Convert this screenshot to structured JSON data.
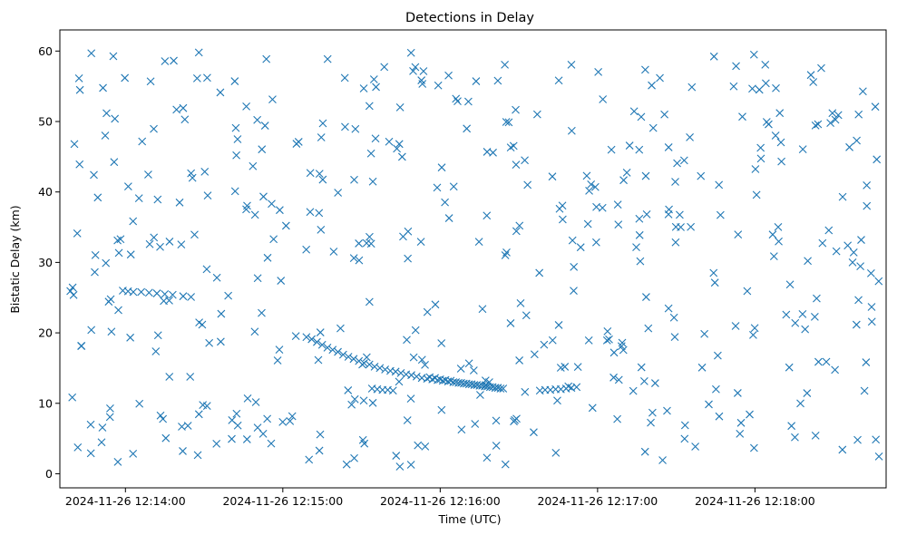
{
  "chart_data": {
    "type": "scatter",
    "title": "Detections in Delay",
    "xlabel": "Time (UTC)",
    "ylabel": "Bistatic Delay (km)",
    "marker": "x",
    "color": "#1f77b4",
    "grid": false,
    "x_range": [
      "2024-11-26 12:13:35",
      "2024-11-26 12:18:50"
    ],
    "ylim": [
      -2,
      63
    ],
    "x_ticks": [
      "2024-11-26 12:14:00",
      "2024-11-26 12:15:00",
      "2024-11-26 12:16:00",
      "2024-11-26 12:17:00",
      "2024-11-26 12:18:00"
    ],
    "y_ticks": [
      0,
      10,
      20,
      30,
      40,
      50,
      60
    ],
    "target_tracks": [
      {
        "t": [
          "2024-11-26 12:13:59",
          "2024-11-26 12:14:01",
          "2024-11-26 12:14:03",
          "2024-11-26 12:14:06",
          "2024-11-26 12:14:09",
          "2024-11-26 12:14:12",
          "2024-11-26 12:14:15",
          "2024-11-26 12:14:18",
          "2024-11-26 12:14:22",
          "2024-11-26 12:14:25"
        ],
        "y": [
          26,
          25.9,
          25.8,
          25.8,
          25.7,
          25.6,
          25.5,
          25.4,
          25.2,
          25.1
        ]
      },
      {
        "t": [
          "2024-11-26 12:15:09",
          "2024-11-26 12:15:11",
          "2024-11-26 12:15:13",
          "2024-11-26 12:15:15",
          "2024-11-26 12:15:17",
          "2024-11-26 12:15:19",
          "2024-11-26 12:15:21",
          "2024-11-26 12:15:23",
          "2024-11-26 12:15:25",
          "2024-11-26 12:15:27",
          "2024-11-26 12:15:29",
          "2024-11-26 12:15:31",
          "2024-11-26 12:15:33",
          "2024-11-26 12:15:35",
          "2024-11-26 12:15:37",
          "2024-11-26 12:15:39",
          "2024-11-26 12:15:41",
          "2024-11-26 12:15:43",
          "2024-11-26 12:15:45",
          "2024-11-26 12:15:47",
          "2024-11-26 12:15:49",
          "2024-11-26 12:15:51",
          "2024-11-26 12:15:53",
          "2024-11-26 12:15:55",
          "2024-11-26 12:15:57",
          "2024-11-26 12:15:59",
          "2024-11-26 12:16:01",
          "2024-11-26 12:16:03",
          "2024-11-26 12:16:05",
          "2024-11-26 12:16:07",
          "2024-11-26 12:16:09",
          "2024-11-26 12:16:11",
          "2024-11-26 12:16:13",
          "2024-11-26 12:16:15",
          "2024-11-26 12:16:17",
          "2024-11-26 12:16:19",
          "2024-11-26 12:16:21",
          "2024-11-26 12:16:23"
        ],
        "y": [
          19.4,
          19.1,
          18.7,
          18.3,
          17.9,
          17.6,
          17.3,
          16.9,
          16.6,
          16.3,
          16.0,
          15.7,
          15.5,
          15.2,
          15.0,
          14.8,
          14.6,
          14.5,
          14.3,
          14.1,
          14.0,
          13.8,
          13.6,
          13.5,
          13.4,
          13.3,
          13.2,
          13.1,
          13.0,
          12.9,
          12.8,
          12.7,
          12.6,
          12.5,
          12.4,
          12.3,
          12.2,
          12.1
        ]
      },
      {
        "t": [
          "2024-11-26 12:15:56",
          "2024-11-26 12:15:58",
          "2024-11-26 12:16:00",
          "2024-11-26 12:16:02",
          "2024-11-26 12:16:04",
          "2024-11-26 12:16:06",
          "2024-11-26 12:16:08",
          "2024-11-26 12:16:10",
          "2024-11-26 12:16:12",
          "2024-11-26 12:16:14",
          "2024-11-26 12:16:16",
          "2024-11-26 12:16:18",
          "2024-11-26 12:16:20",
          "2024-11-26 12:16:22",
          "2024-11-26 12:16:24"
        ],
        "y": [
          13.7,
          13.6,
          13.4,
          13.3,
          13.2,
          13.0,
          12.9,
          12.8,
          12.7,
          12.6,
          12.5,
          12.4,
          12.3,
          12.2,
          12.1
        ]
      },
      {
        "t": [
          "2024-11-26 12:15:34",
          "2024-11-26 12:15:36",
          "2024-11-26 12:15:38",
          "2024-11-26 12:15:40",
          "2024-11-26 12:15:42"
        ],
        "y": [
          12.1,
          12.0,
          11.9,
          11.9,
          11.8
        ]
      },
      {
        "t": [
          "2024-11-26 12:16:38",
          "2024-11-26 12:16:40",
          "2024-11-26 12:16:42",
          "2024-11-26 12:16:44",
          "2024-11-26 12:16:46",
          "2024-11-26 12:16:48",
          "2024-11-26 12:16:50",
          "2024-11-26 12:16:52"
        ],
        "y": [
          11.8,
          11.9,
          11.9,
          12.0,
          12.0,
          12.1,
          12.2,
          12.3
        ]
      }
    ],
    "points_note": "",
    "clutter": {
      "t_start": "2024-11-26 12:13:38",
      "t_end": "2024-11-26 12:18:48",
      "y_min": 1,
      "y_max": 60,
      "count": 470,
      "seed": 17
    }
  }
}
